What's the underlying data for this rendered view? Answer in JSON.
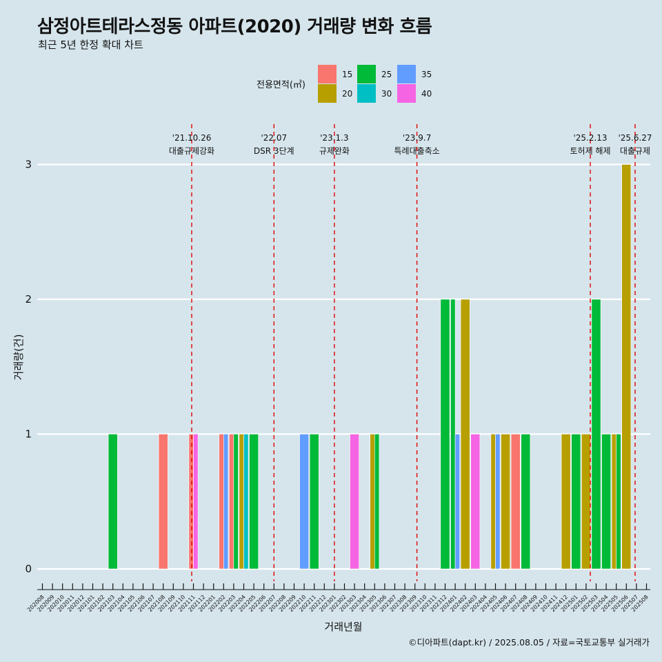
{
  "chart_data": {
    "type": "bar",
    "title": "삼정아트테라스정동 아파트(2020) 거래량 변화 흐름",
    "subtitle": "최근 5년 한정 확대 차트",
    "xlabel": "거래년월",
    "ylabel": "거래량(건)",
    "ylim": [
      -0.15,
      3.07
    ],
    "yticks": [
      0,
      1,
      2,
      3
    ],
    "grid": true,
    "legend": {
      "title": "전용면적(㎡)",
      "placement": "top",
      "items": [
        {
          "label": "15",
          "color": "#F8766D"
        },
        {
          "label": "20",
          "color": "#B79F00"
        },
        {
          "label": "25",
          "color": "#00BA38"
        },
        {
          "label": "30",
          "color": "#00BFC4"
        },
        {
          "label": "35",
          "color": "#619CFF"
        },
        {
          "label": "40",
          "color": "#F564E3"
        }
      ]
    },
    "categories": [
      "202008",
      "202009",
      "202010",
      "202011",
      "202012",
      "202101",
      "202102",
      "202103",
      "202104",
      "202105",
      "202106",
      "202107",
      "202108",
      "202109",
      "202110",
      "202111",
      "202112",
      "202201",
      "202202",
      "202203",
      "202204",
      "202205",
      "202206",
      "202207",
      "202208",
      "202209",
      "202210",
      "202211",
      "202212",
      "202301",
      "202302",
      "202303",
      "202304",
      "202305",
      "202306",
      "202307",
      "202308",
      "202309",
      "202310",
      "202311",
      "202312",
      "202401",
      "202402",
      "202403",
      "202404",
      "202405",
      "202406",
      "202407",
      "202408",
      "202409",
      "202410",
      "202411",
      "202412",
      "202501",
      "202502",
      "202503",
      "202504",
      "202505",
      "202506",
      "202507",
      "202508"
    ],
    "bars": [
      {
        "month": "202103",
        "segments": [
          {
            "area": "25",
            "count": 1
          }
        ]
      },
      {
        "month": "202108",
        "segments": [
          {
            "area": "15",
            "count": 1
          }
        ]
      },
      {
        "month": "202111",
        "segments": [
          {
            "area": "15",
            "count": 1
          },
          {
            "area": "40",
            "count": 1
          }
        ]
      },
      {
        "month": "202202",
        "segments": [
          {
            "area": "15",
            "count": 1
          },
          {
            "area": "35",
            "count": 1
          }
        ]
      },
      {
        "month": "202203",
        "segments": [
          {
            "area": "15",
            "count": 1
          },
          {
            "area": "25",
            "count": 1
          }
        ]
      },
      {
        "month": "202204",
        "segments": [
          {
            "area": "20",
            "count": 1
          },
          {
            "area": "30",
            "count": 1
          }
        ]
      },
      {
        "month": "202205",
        "segments": [
          {
            "area": "25",
            "count": 1
          }
        ]
      },
      {
        "month": "202210",
        "segments": [
          {
            "area": "35",
            "count": 1
          }
        ]
      },
      {
        "month": "202211",
        "segments": [
          {
            "area": "25",
            "count": 1
          }
        ]
      },
      {
        "month": "202303",
        "segments": [
          {
            "area": "40",
            "count": 1
          }
        ]
      },
      {
        "month": "202305",
        "segments": [
          {
            "area": "20",
            "count": 1
          },
          {
            "area": "25",
            "count": 1
          }
        ]
      },
      {
        "month": "202312",
        "segments": [
          {
            "area": "25",
            "count": 2
          }
        ]
      },
      {
        "month": "202401",
        "segments": [
          {
            "area": "25",
            "count": 2
          },
          {
            "area": "35",
            "count": 1
          }
        ]
      },
      {
        "month": "202402",
        "segments": [
          {
            "area": "20",
            "count": 2
          }
        ]
      },
      {
        "month": "202403",
        "segments": [
          {
            "area": "40",
            "count": 1
          }
        ]
      },
      {
        "month": "202405",
        "segments": [
          {
            "area": "20",
            "count": 1
          },
          {
            "area": "35",
            "count": 1
          }
        ]
      },
      {
        "month": "202406",
        "segments": [
          {
            "area": "20",
            "count": 1
          }
        ]
      },
      {
        "month": "202407",
        "segments": [
          {
            "area": "15",
            "count": 1
          }
        ]
      },
      {
        "month": "202408",
        "segments": [
          {
            "area": "25",
            "count": 1
          }
        ]
      },
      {
        "month": "202412",
        "segments": [
          {
            "area": "20",
            "count": 1
          }
        ]
      },
      {
        "month": "202501",
        "segments": [
          {
            "area": "25",
            "count": 1
          }
        ]
      },
      {
        "month": "202502",
        "segments": [
          {
            "area": "20",
            "count": 1
          }
        ]
      },
      {
        "month": "202503",
        "segments": [
          {
            "area": "25",
            "count": 2
          }
        ]
      },
      {
        "month": "202504",
        "segments": [
          {
            "area": "25",
            "count": 1
          }
        ]
      },
      {
        "month": "202505",
        "segments": [
          {
            "area": "20",
            "count": 1
          },
          {
            "area": "25",
            "count": 1
          }
        ]
      },
      {
        "month": "202506",
        "segments": [
          {
            "area": "20",
            "count": 3
          }
        ]
      }
    ],
    "events": [
      {
        "month": "202110",
        "offset": 0.83,
        "date": "'21.10.26",
        "label": "대출규제강화",
        "strong": true
      },
      {
        "month": "202207",
        "offset": 0.0,
        "date": "'22.07",
        "label": "DSR 3단계",
        "strong": true
      },
      {
        "month": "202301",
        "offset": 0.0,
        "date": "'23.1.3",
        "label": "규제완화",
        "strong": true
      },
      {
        "month": "202309",
        "offset": 0.2,
        "date": "'23.9.7",
        "label": "특례대출축소",
        "strong": true
      },
      {
        "month": "202502",
        "offset": 0.42,
        "date": "'25.2.13",
        "label": "토허제 해제",
        "strong": false
      },
      {
        "month": "202506",
        "offset": 0.87,
        "date": "'25.6.27",
        "label": "대출규제",
        "strong": true
      }
    ],
    "caption": "©디아파트(dapt.kr) / 2025.08.05 / 자료=국토교통부 실거래가"
  }
}
